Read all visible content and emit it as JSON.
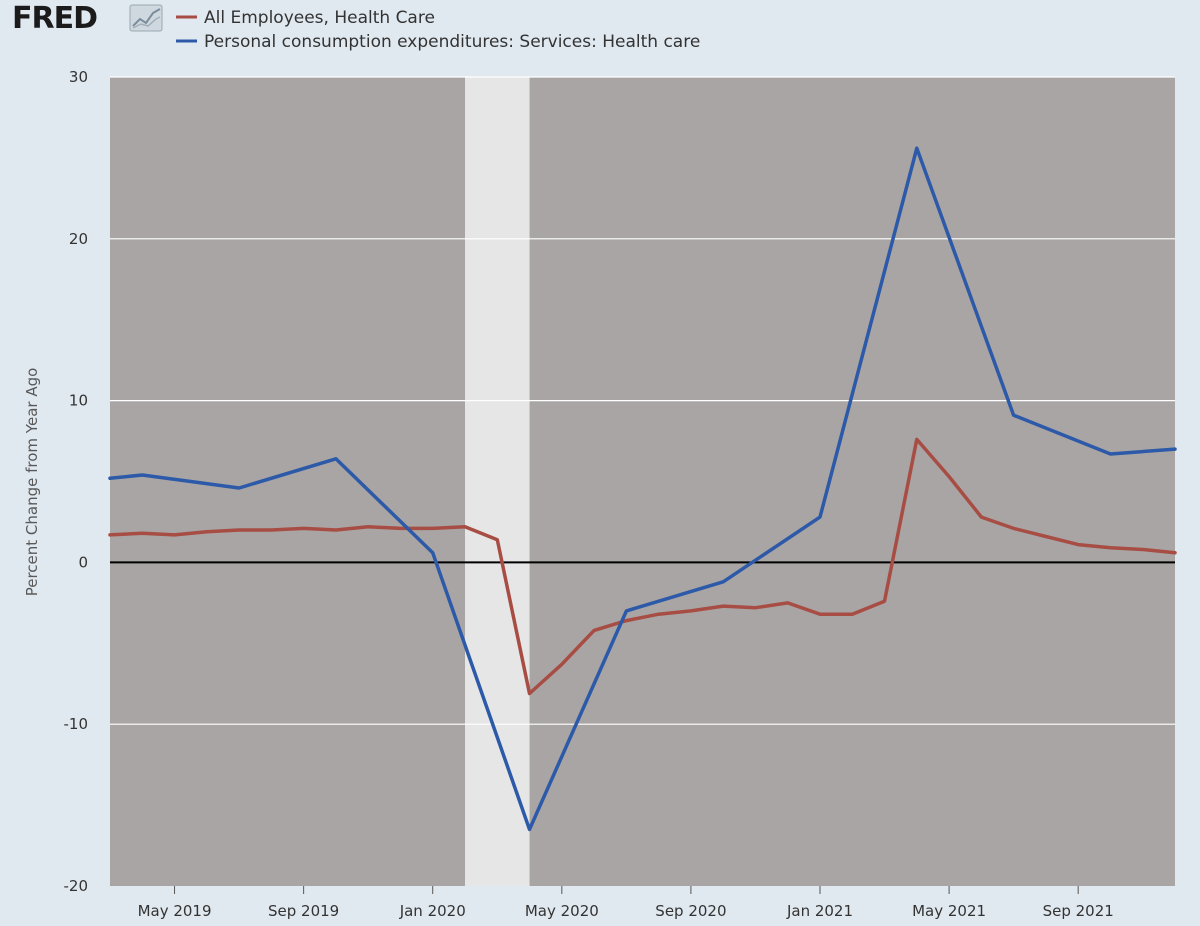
{
  "logo": {
    "text": "FRED",
    "icon": "line-chart-logo-icon"
  },
  "chart_data": {
    "type": "line",
    "ylabel": "Percent Change from Year Ago",
    "ylim": [
      -20,
      30
    ],
    "yticks": [
      "30",
      "20",
      "10",
      "0",
      "-10",
      "-20"
    ],
    "yticks_values": [
      30,
      20,
      10,
      0,
      -10,
      -20
    ],
    "xlim": [
      "2019-03-01",
      "2021-12-01"
    ],
    "xticks": [
      "May 2019",
      "Sep 2019",
      "Jan 2020",
      "May 2020",
      "Sep 2020",
      "Jan 2021",
      "May 2021",
      "Sep 2021"
    ],
    "xticks_dates": [
      "2019-05-01",
      "2019-09-01",
      "2020-01-01",
      "2020-05-01",
      "2020-09-01",
      "2021-01-01",
      "2021-05-01",
      "2021-09-01"
    ],
    "grid": true,
    "legend_placement": "top-left",
    "recession": {
      "start": "2020-02-01",
      "end": "2020-04-01"
    },
    "colors": {
      "plot_background": "#a9a5a5",
      "recession_shading": "#e6e6e6",
      "gridline": "#ffffff",
      "zero_line": "#000000",
      "page_background": "#e1e9f0"
    },
    "series": [
      {
        "name": "All Employees, Health Care",
        "color": "#a84d44",
        "points": [
          [
            "2019-03-01",
            1.7
          ],
          [
            "2019-04-01",
            1.8
          ],
          [
            "2019-05-01",
            1.7
          ],
          [
            "2019-06-01",
            1.9
          ],
          [
            "2019-07-01",
            2.0
          ],
          [
            "2019-08-01",
            2.0
          ],
          [
            "2019-09-01",
            2.1
          ],
          [
            "2019-10-01",
            2.0
          ],
          [
            "2019-11-01",
            2.2
          ],
          [
            "2019-12-01",
            2.1
          ],
          [
            "2020-01-01",
            2.1
          ],
          [
            "2020-02-01",
            2.2
          ],
          [
            "2020-03-01",
            1.4
          ],
          [
            "2020-04-01",
            -8.1
          ],
          [
            "2020-05-01",
            -6.3
          ],
          [
            "2020-06-01",
            -4.2
          ],
          [
            "2020-07-01",
            -3.6
          ],
          [
            "2020-08-01",
            -3.2
          ],
          [
            "2020-09-01",
            -3.0
          ],
          [
            "2020-10-01",
            -2.7
          ],
          [
            "2020-11-01",
            -2.8
          ],
          [
            "2020-12-01",
            -2.5
          ],
          [
            "2021-01-01",
            -3.2
          ],
          [
            "2021-02-01",
            -3.2
          ],
          [
            "2021-03-01",
            -2.4
          ],
          [
            "2021-04-01",
            7.6
          ],
          [
            "2021-05-01",
            5.3
          ],
          [
            "2021-06-01",
            2.8
          ],
          [
            "2021-07-01",
            2.1
          ],
          [
            "2021-08-01",
            1.6
          ],
          [
            "2021-09-01",
            1.1
          ],
          [
            "2021-10-01",
            0.9
          ],
          [
            "2021-11-01",
            0.8
          ],
          [
            "2021-12-01",
            0.6
          ]
        ]
      },
      {
        "name": "Personal consumption expenditures: Services: Health care",
        "color": "#2d5aa8",
        "points": [
          [
            "2019-03-01",
            5.2
          ],
          [
            "2019-04-01",
            5.4
          ],
          [
            "2019-07-01",
            4.6
          ],
          [
            "2019-10-01",
            6.4
          ],
          [
            "2020-01-01",
            0.6
          ],
          [
            "2020-04-01",
            -16.5
          ],
          [
            "2020-07-01",
            -3.0
          ],
          [
            "2020-10-01",
            -1.2
          ],
          [
            "2021-01-01",
            2.8
          ],
          [
            "2021-04-01",
            25.6
          ],
          [
            "2021-07-01",
            9.1
          ],
          [
            "2021-10-01",
            6.7
          ],
          [
            "2021-12-01",
            7.0
          ]
        ]
      }
    ]
  }
}
